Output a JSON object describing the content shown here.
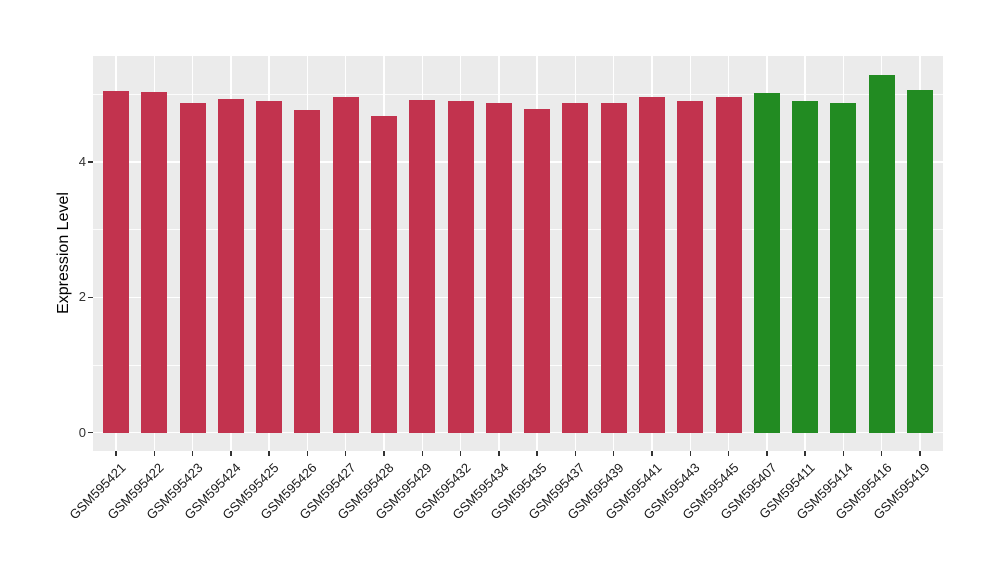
{
  "chart_data": {
    "type": "bar",
    "title": "",
    "xlabel": "",
    "ylabel": "Expression Level",
    "ylim": [
      -0.27,
      5.57
    ],
    "yticks": [
      0,
      2,
      4
    ],
    "yticks_minor": [
      1,
      3,
      5
    ],
    "grid": true,
    "legend_position": "none",
    "bars": [
      {
        "label": "GSM595421",
        "value": 5.05,
        "group": "red"
      },
      {
        "label": "GSM595422",
        "value": 5.04,
        "group": "red"
      },
      {
        "label": "GSM595423",
        "value": 4.87,
        "group": "red"
      },
      {
        "label": "GSM595424",
        "value": 4.94,
        "group": "red"
      },
      {
        "label": "GSM595425",
        "value": 4.91,
        "group": "red"
      },
      {
        "label": "GSM595426",
        "value": 4.77,
        "group": "red"
      },
      {
        "label": "GSM595427",
        "value": 4.97,
        "group": "red"
      },
      {
        "label": "GSM595428",
        "value": 4.68,
        "group": "red"
      },
      {
        "label": "GSM595429",
        "value": 4.92,
        "group": "red"
      },
      {
        "label": "GSM595432",
        "value": 4.91,
        "group": "red"
      },
      {
        "label": "GSM595434",
        "value": 4.88,
        "group": "red"
      },
      {
        "label": "GSM595435",
        "value": 4.78,
        "group": "red"
      },
      {
        "label": "GSM595437",
        "value": 4.88,
        "group": "red"
      },
      {
        "label": "GSM595439",
        "value": 4.87,
        "group": "red"
      },
      {
        "label": "GSM595441",
        "value": 4.96,
        "group": "red"
      },
      {
        "label": "GSM595443",
        "value": 4.91,
        "group": "red"
      },
      {
        "label": "GSM595445",
        "value": 4.97,
        "group": "red"
      },
      {
        "label": "GSM595407",
        "value": 5.03,
        "group": "green"
      },
      {
        "label": "GSM595411",
        "value": 4.9,
        "group": "green"
      },
      {
        "label": "GSM595414",
        "value": 4.88,
        "group": "green"
      },
      {
        "label": "GSM595416",
        "value": 5.29,
        "group": "green"
      },
      {
        "label": "GSM595419",
        "value": 5.06,
        "group": "green"
      }
    ],
    "group_colors": {
      "red": "#C2334E",
      "green": "#228B22"
    }
  },
  "style": {
    "background": "#FFFFFF",
    "panel_bg": "#EBEBEB",
    "grid_color": "#FFFFFF",
    "tick_color": "#333333",
    "axis_text_color": "#333333",
    "x_label_color": "#1A1A1A",
    "axis_title_color": "#000000"
  }
}
